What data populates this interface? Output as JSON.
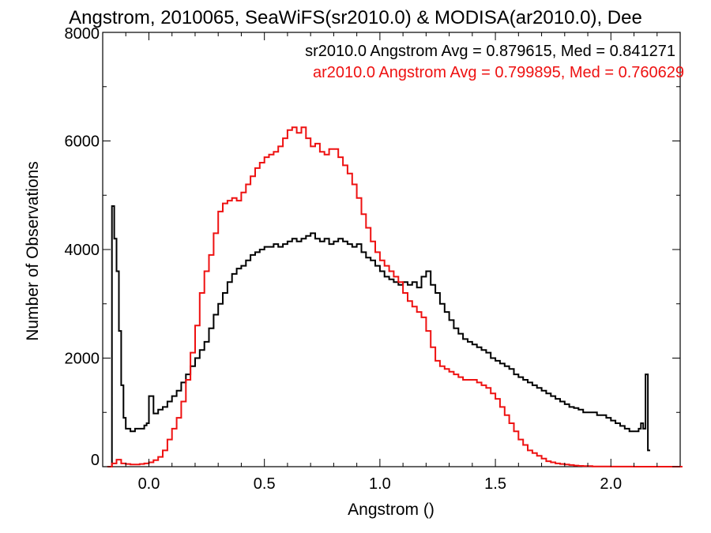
{
  "chart_data": {
    "type": "line",
    "title": "Angstrom, 2010065, SeaWiFS(sr2010.0) & MODISA(ar2010.0), Dee",
    "xlabel": "Angstrom ()",
    "ylabel": "Number of Observations",
    "xlim": [
      -0.2,
      2.3
    ],
    "ylim": [
      0,
      8000
    ],
    "xticks": [
      "0.0",
      "0.5",
      "1.0",
      "1.5",
      "2.0"
    ],
    "yticks": [
      "0",
      "2000",
      "4000",
      "6000",
      "8000"
    ],
    "grid": false,
    "legend_position": "top-right",
    "series": [
      {
        "name": "sr2010.0",
        "label": "sr2010.0 Angstrom Avg = 0.879615, Med = 0.841271",
        "color": "#000000",
        "step": true,
        "x": [
          -0.175,
          -0.16,
          -0.15,
          -0.14,
          -0.13,
          -0.12,
          -0.11,
          -0.1,
          -0.08,
          -0.06,
          -0.04,
          -0.02,
          -0.01,
          0.0,
          0.02,
          0.04,
          0.06,
          0.08,
          0.1,
          0.12,
          0.14,
          0.16,
          0.18,
          0.2,
          0.22,
          0.24,
          0.26,
          0.28,
          0.3,
          0.32,
          0.34,
          0.36,
          0.38,
          0.4,
          0.42,
          0.44,
          0.46,
          0.48,
          0.5,
          0.52,
          0.54,
          0.56,
          0.58,
          0.6,
          0.62,
          0.64,
          0.66,
          0.68,
          0.7,
          0.72,
          0.74,
          0.76,
          0.78,
          0.8,
          0.82,
          0.84,
          0.86,
          0.88,
          0.9,
          0.92,
          0.94,
          0.96,
          0.98,
          1.0,
          1.02,
          1.04,
          1.06,
          1.08,
          1.1,
          1.12,
          1.14,
          1.16,
          1.18,
          1.2,
          1.22,
          1.24,
          1.26,
          1.28,
          1.3,
          1.32,
          1.34,
          1.36,
          1.38,
          1.4,
          1.42,
          1.44,
          1.46,
          1.48,
          1.5,
          1.52,
          1.54,
          1.56,
          1.58,
          1.6,
          1.62,
          1.64,
          1.66,
          1.68,
          1.7,
          1.72,
          1.74,
          1.76,
          1.78,
          1.8,
          1.82,
          1.84,
          1.86,
          1.88,
          1.9,
          1.92,
          1.94,
          1.96,
          1.98,
          2.0,
          2.02,
          2.04,
          2.06,
          2.08,
          2.1,
          2.12,
          2.13,
          2.14,
          2.15,
          2.16
        ],
        "y": [
          0,
          4800,
          4200,
          3600,
          2500,
          1500,
          900,
          700,
          650,
          700,
          700,
          760,
          800,
          1300,
          980,
          1050,
          1100,
          1200,
          1300,
          1400,
          1550,
          1700,
          1850,
          2000,
          2150,
          2300,
          2550,
          2800,
          3000,
          3200,
          3400,
          3550,
          3650,
          3700,
          3800,
          3900,
          3950,
          4000,
          4050,
          4050,
          4100,
          4050,
          4100,
          4150,
          4200,
          4150,
          4200,
          4250,
          4300,
          4200,
          4150,
          4200,
          4100,
          4150,
          4200,
          4150,
          4100,
          4050,
          4100,
          3950,
          3850,
          3800,
          3700,
          3600,
          3500,
          3450,
          3400,
          3350,
          3400,
          3350,
          3400,
          3300,
          3500,
          3600,
          3350,
          3200,
          3000,
          2850,
          2700,
          2550,
          2450,
          2350,
          2300,
          2250,
          2200,
          2150,
          2100,
          2000,
          1950,
          1900,
          1850,
          1800,
          1700,
          1650,
          1600,
          1550,
          1500,
          1450,
          1400,
          1350,
          1300,
          1250,
          1200,
          1150,
          1100,
          1080,
          1050,
          1000,
          1000,
          1000,
          950,
          950,
          900,
          850,
          800,
          750,
          700,
          650,
          650,
          700,
          800,
          700,
          1700,
          300
        ]
      },
      {
        "name": "ar2010.0",
        "label": "ar2010.0 Angstrom Avg = 0.799895, Med = 0.760629",
        "color": "#ee1111",
        "step": true,
        "x": [
          -0.18,
          -0.16,
          -0.14,
          -0.12,
          -0.1,
          -0.08,
          -0.06,
          -0.04,
          -0.02,
          0.0,
          0.02,
          0.04,
          0.06,
          0.08,
          0.1,
          0.12,
          0.14,
          0.16,
          0.18,
          0.2,
          0.22,
          0.24,
          0.26,
          0.28,
          0.3,
          0.32,
          0.34,
          0.36,
          0.38,
          0.4,
          0.42,
          0.44,
          0.46,
          0.48,
          0.5,
          0.52,
          0.54,
          0.56,
          0.58,
          0.6,
          0.62,
          0.64,
          0.66,
          0.68,
          0.7,
          0.72,
          0.74,
          0.76,
          0.78,
          0.8,
          0.82,
          0.84,
          0.86,
          0.88,
          0.9,
          0.92,
          0.94,
          0.96,
          0.98,
          1.0,
          1.02,
          1.04,
          1.06,
          1.08,
          1.1,
          1.12,
          1.14,
          1.16,
          1.18,
          1.2,
          1.22,
          1.24,
          1.26,
          1.28,
          1.3,
          1.32,
          1.34,
          1.36,
          1.38,
          1.4,
          1.42,
          1.44,
          1.46,
          1.48,
          1.5,
          1.52,
          1.54,
          1.56,
          1.58,
          1.6,
          1.62,
          1.64,
          1.66,
          1.68,
          1.7,
          1.72,
          1.74,
          1.76,
          1.78,
          1.8,
          1.82,
          1.84,
          1.86,
          1.88,
          1.9,
          1.92,
          1.94,
          1.96,
          1.98,
          2.0,
          2.02,
          2.04,
          2.06,
          2.08,
          2.1,
          2.12,
          2.14,
          2.16,
          2.2,
          2.3
        ],
        "y": [
          0,
          60,
          130,
          60,
          50,
          40,
          40,
          50,
          60,
          80,
          120,
          180,
          300,
          500,
          700,
          900,
          1200,
          1600,
          2100,
          2600,
          3200,
          3600,
          3900,
          4300,
          4700,
          4850,
          4900,
          4950,
          4900,
          5050,
          5200,
          5350,
          5500,
          5600,
          5700,
          5750,
          5800,
          5900,
          6050,
          6200,
          6250,
          6150,
          6250,
          6050,
          5900,
          5950,
          5800,
          5750,
          5850,
          5850,
          5700,
          5550,
          5400,
          5200,
          4950,
          4650,
          4400,
          4150,
          3950,
          3800,
          3700,
          3600,
          3500,
          3400,
          3200,
          3050,
          2950,
          2850,
          2750,
          2500,
          2200,
          1950,
          1850,
          1800,
          1750,
          1700,
          1650,
          1600,
          1600,
          1600,
          1550,
          1500,
          1450,
          1350,
          1250,
          1100,
          950,
          800,
          650,
          500,
          400,
          300,
          250,
          200,
          150,
          100,
          80,
          60,
          50,
          40,
          30,
          20,
          15,
          10,
          10,
          5,
          5,
          5,
          3,
          2,
          2,
          1,
          1,
          1,
          0,
          0,
          0,
          0,
          0,
          0
        ],
        "stepTail": true
      }
    ]
  }
}
